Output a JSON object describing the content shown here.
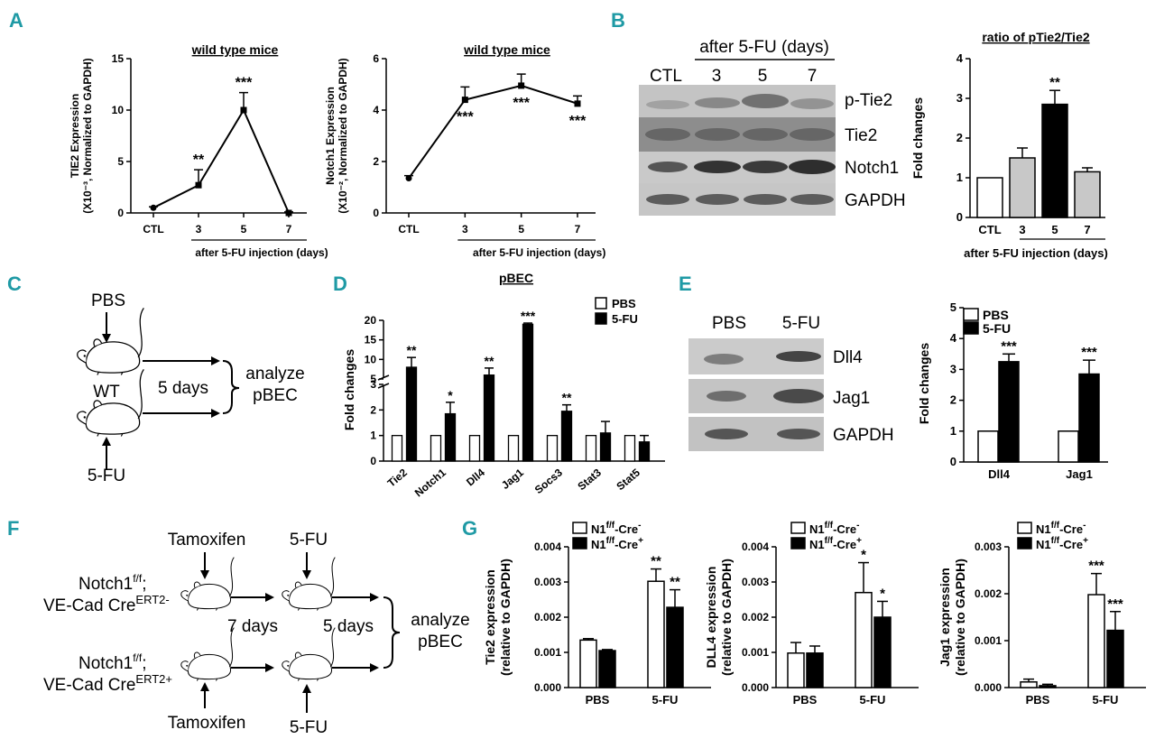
{
  "colors": {
    "panel_label": "#1f9aa5",
    "gray_bar": "#c8c8c8",
    "black_bar": "#000000",
    "white_bar": "#ffffff"
  },
  "panel_labels": {
    "A": "A",
    "B": "B",
    "C": "C",
    "D": "D",
    "E": "E",
    "F": "F",
    "G": "G"
  },
  "common": {
    "xlabel_days": "after 5-FU injection (days)",
    "fold_changes": "Fold changes"
  },
  "blotB": {
    "header": "after 5-FU (days)",
    "lanes": [
      "CTL",
      "3",
      "5",
      "7"
    ],
    "bands": [
      "p-Tie2",
      "Tie2",
      "Notch1",
      "GAPDH"
    ]
  },
  "blotE": {
    "lanes": [
      "PBS",
      "5-FU"
    ],
    "bands": [
      "Dll4",
      "Jag1",
      "GAPDH"
    ]
  },
  "schemeC": {
    "pbs": "PBS",
    "wt": "WT",
    "fu": "5-FU",
    "days": "5 days",
    "analyze": "analyze",
    "pbec": "pBEC"
  },
  "schemeF": {
    "tamoxifen_top": "Tamoxifen",
    "tamoxifen_bottom": "Tamoxifen",
    "fu_top": "5-FU",
    "fu_bottom": "5-FU",
    "geno1_line1": "Notch1",
    "geno1_sup1": "f/f",
    "geno1_line1_end": ";",
    "geno1_line2": "VE-Cad Cre",
    "geno1_sup2": "ERT2-",
    "geno2_line1": "Notch1",
    "geno2_sup1": "f/f",
    "geno2_line1_end": ";",
    "geno2_line2": "VE-Cad Cre",
    "geno2_sup2": "ERT2+",
    "days7": "7 days",
    "days5": "5 days",
    "analyze": "analyze",
    "pbec": "pBEC"
  },
  "chart_data": [
    {
      "id": "A1",
      "type": "line",
      "title": "wild type mice",
      "ylabel_line1": "TIE2 Expression",
      "ylabel_line2": "(X10⁻³, Normalized to GAPDH)",
      "xlabel": "after 5-FU injection (days)",
      "categories": [
        "CTL",
        "3",
        "5",
        "7"
      ],
      "values": [
        0.5,
        2.7,
        10.0,
        0.0
      ],
      "errors": [
        0.1,
        1.5,
        1.7,
        0.1
      ],
      "ylim": [
        0,
        15
      ],
      "yticks": [
        "0",
        "5",
        "10",
        "15"
      ],
      "sig": [
        "",
        "**",
        "***",
        ""
      ]
    },
    {
      "id": "A2",
      "type": "line",
      "title": "wild type mice",
      "ylabel_line1": "Notch1 Expression",
      "ylabel_line2": "(X10⁻², Normalized to GAPDH)",
      "xlabel": "after 5-FU injection (days)",
      "categories": [
        "CTL",
        "3",
        "5",
        "7"
      ],
      "values": [
        1.35,
        4.4,
        4.95,
        4.25
      ],
      "errors": [
        0.1,
        0.5,
        0.45,
        0.3
      ],
      "ylim": [
        0,
        6
      ],
      "yticks": [
        "0",
        "2",
        "4",
        "6"
      ],
      "sig": [
        "",
        "***",
        "***",
        "***"
      ]
    },
    {
      "id": "B",
      "type": "bar",
      "title": "ratio of pTie2/Tie2",
      "ylabel": "Fold changes",
      "xlabel": "after 5-FU injection (days)",
      "categories": [
        "CTL",
        "3",
        "5",
        "7"
      ],
      "values": [
        1.0,
        1.5,
        2.85,
        1.15
      ],
      "errors": [
        0.0,
        0.25,
        0.35,
        0.1
      ],
      "fills": [
        "white",
        "gray",
        "black",
        "gray"
      ],
      "ylim": [
        0,
        4
      ],
      "yticks": [
        "0",
        "1",
        "2",
        "3",
        "4"
      ],
      "sig": [
        "",
        "",
        "**",
        ""
      ]
    },
    {
      "id": "D",
      "type": "bar",
      "title": "pBEC",
      "ylabel": "Fold changes",
      "categories": [
        "Tie2",
        "Notch1",
        "Dll4",
        "Jag1",
        "Socs3",
        "Stat3",
        "Stat5"
      ],
      "series": [
        {
          "name": "PBS",
          "values": [
            1,
            1,
            1,
            1,
            1,
            1,
            1
          ],
          "errors": [
            0,
            0,
            0,
            0,
            0,
            0,
            0
          ]
        },
        {
          "name": "5-FU",
          "values": [
            8,
            1.85,
            6,
            19,
            1.95,
            1.1,
            0.75
          ],
          "errors": [
            2.5,
            0.45,
            1.8,
            0.3,
            0.25,
            0.45,
            0.25
          ]
        }
      ],
      "sig": [
        "**",
        "*",
        "**",
        "***",
        "**",
        "",
        ""
      ],
      "yticks_lower": [
        "0",
        "1",
        "2",
        "3"
      ],
      "yticks_upper": [
        "5",
        "10",
        "15",
        "20"
      ],
      "broken_axis": true
    },
    {
      "id": "E",
      "type": "bar",
      "ylabel": "Fold changes",
      "categories": [
        "Dll4",
        "Jag1"
      ],
      "series": [
        {
          "name": "PBS",
          "values": [
            1,
            1
          ],
          "errors": [
            0,
            0
          ]
        },
        {
          "name": "5-FU",
          "values": [
            3.25,
            2.85
          ],
          "errors": [
            0.25,
            0.45
          ]
        }
      ],
      "sig": [
        "***",
        "***"
      ],
      "ylim": [
        0,
        5
      ],
      "yticks": [
        "0",
        "1",
        "2",
        "3",
        "4",
        "5"
      ]
    },
    {
      "id": "G1",
      "type": "bar",
      "ylabel_line1": "Tie2 expression",
      "ylabel_line2": "(relative to GAPDH)",
      "categories": [
        "PBS",
        "5-FU"
      ],
      "series": [
        {
          "name": "N1",
          "sup": "f/f",
          "suffix": "-Cre",
          "sign": "-",
          "values": [
            0.00135,
            0.00302
          ],
          "errors": [
            4e-05,
            0.00035
          ]
        },
        {
          "name": "N1",
          "sup": "f/f",
          "suffix": "-Cre",
          "sign": "+",
          "values": [
            0.00105,
            0.00228
          ],
          "errors": [
            3e-05,
            0.0005
          ]
        }
      ],
      "sig": [
        [
          "",
          ""
        ],
        [
          "**",
          "**"
        ]
      ],
      "ylim": [
        0,
        0.004
      ],
      "yticks": [
        "0.000",
        "0.001",
        "0.002",
        "0.003",
        "0.004"
      ]
    },
    {
      "id": "G2",
      "type": "bar",
      "ylabel_line1": "DLL4 expression",
      "ylabel_line2": "(relative to GAPDH)",
      "categories": [
        "PBS",
        "5-FU"
      ],
      "series": [
        {
          "name": "N1",
          "sup": "f/f",
          "suffix": "-Cre",
          "sign": "-",
          "values": [
            0.00098,
            0.0027
          ],
          "errors": [
            0.0003,
            0.00085
          ]
        },
        {
          "name": "N1",
          "sup": "f/f",
          "suffix": "-Cre",
          "sign": "+",
          "values": [
            0.00098,
            0.002
          ],
          "errors": [
            0.0002,
            0.00045
          ]
        }
      ],
      "sig": [
        [
          "",
          ""
        ],
        [
          "*",
          "*"
        ]
      ],
      "ylim": [
        0,
        0.004
      ],
      "yticks": [
        "0.000",
        "0.001",
        "0.002",
        "0.003",
        "0.004"
      ]
    },
    {
      "id": "G3",
      "type": "bar",
      "ylabel_line1": "Jag1 expression",
      "ylabel_line2": "(relative to GAPDH)",
      "categories": [
        "PBS",
        "5-FU"
      ],
      "series": [
        {
          "name": "N1",
          "sup": "f/f",
          "suffix": "-Cre",
          "sign": "-",
          "values": [
            0.00012,
            0.00198
          ],
          "errors": [
            6e-05,
            0.00045
          ]
        },
        {
          "name": "N1",
          "sup": "f/f",
          "suffix": "-Cre",
          "sign": "+",
          "values": [
            4e-05,
            0.00122
          ],
          "errors": [
            3e-05,
            0.0004
          ]
        }
      ],
      "sig": [
        [
          "",
          ""
        ],
        [
          "***",
          "***"
        ]
      ],
      "ylim": [
        0,
        0.003
      ],
      "yticks": [
        "0.000",
        "0.001",
        "0.002",
        "0.003"
      ]
    }
  ]
}
